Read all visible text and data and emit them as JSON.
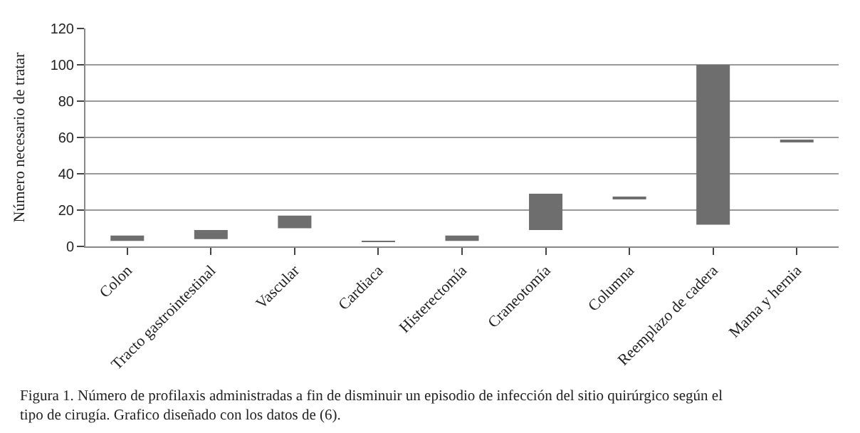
{
  "chart_data": {
    "type": "bar",
    "ylabel": "Número necesario de tratar",
    "categories": [
      "Colon",
      "Tracto gastrointestinal",
      "Vascular",
      "Cardiaca",
      "Histerectomía",
      "Craneotomía",
      "Columna",
      "Reemplazo de cadera",
      "Mama y hernia"
    ],
    "base": [
      3,
      4,
      10,
      2.5,
      3,
      9,
      26,
      12,
      57.5
    ],
    "values": [
      3,
      5,
      7,
      0.5,
      3,
      20,
      1,
      88,
      1
    ],
    "color": "#6e6e6e",
    "ylim": [
      0,
      120
    ],
    "yticks": [
      0,
      20,
      40,
      60,
      80,
      100,
      120
    ],
    "grid": "y",
    "annotations": [
      "Figura 1. Número de profilaxis administradas a fin de disminuir un episodio de infección del sitio quirúrgico según el tipo de cirugía. Grafico diseñado con los datos de (6)."
    ]
  }
}
